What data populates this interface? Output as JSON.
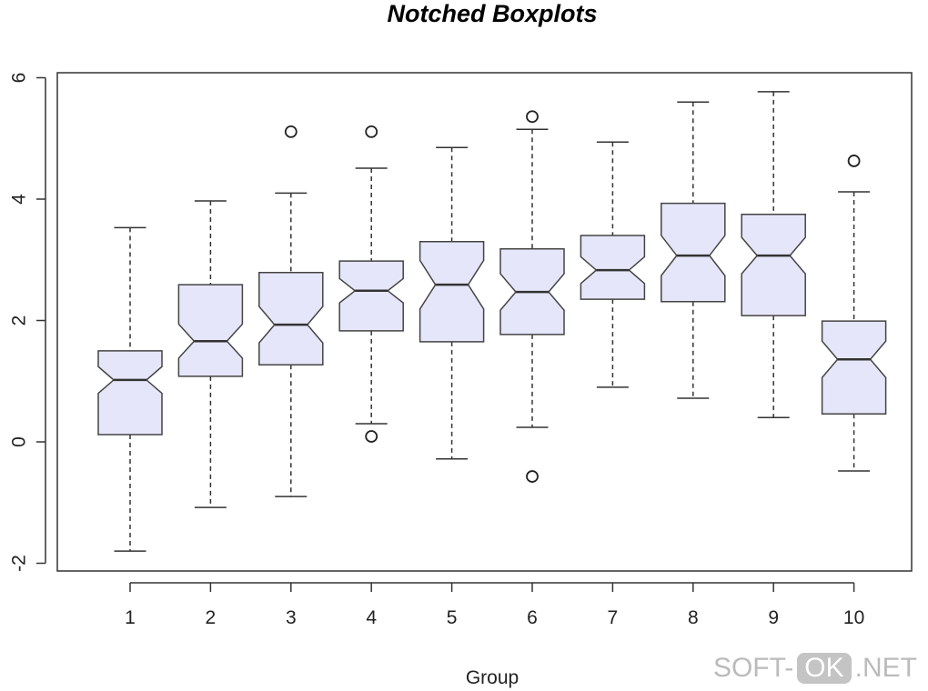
{
  "chart_data": {
    "type": "boxplot",
    "title": "Notched Boxplots",
    "xlabel": "Group",
    "ylabel": "",
    "ylim": [
      -2,
      6
    ],
    "yticks": [
      "-2",
      "0",
      "2",
      "4",
      "6"
    ],
    "categories": [
      "1",
      "2",
      "3",
      "4",
      "5",
      "6",
      "7",
      "8",
      "9",
      "10"
    ],
    "box_color": "#e6e6fa",
    "boxes": [
      {
        "low": -1.8,
        "q1": 0.12,
        "median": 1.02,
        "q3": 1.5,
        "high": 3.53,
        "notch": 0.22,
        "outliers": []
      },
      {
        "low": -1.08,
        "q1": 1.08,
        "median": 1.66,
        "q3": 2.59,
        "high": 3.97,
        "notch": 0.28,
        "outliers": []
      },
      {
        "low": -0.9,
        "q1": 1.27,
        "median": 1.93,
        "q3": 2.79,
        "high": 4.1,
        "notch": 0.3,
        "outliers": [
          5.11
        ]
      },
      {
        "low": 0.3,
        "q1": 1.83,
        "median": 2.49,
        "q3": 2.98,
        "high": 4.51,
        "notch": 0.2,
        "outliers": [
          5.11,
          0.09
        ]
      },
      {
        "low": -0.28,
        "q1": 1.65,
        "median": 2.59,
        "q3": 3.3,
        "high": 4.85,
        "notch": 0.4,
        "outliers": []
      },
      {
        "low": 0.24,
        "q1": 1.77,
        "median": 2.47,
        "q3": 3.18,
        "high": 5.15,
        "notch": 0.3,
        "outliers": [
          5.36,
          -0.57
        ]
      },
      {
        "low": 0.9,
        "q1": 2.35,
        "median": 2.83,
        "q3": 3.4,
        "high": 4.94,
        "notch": 0.22,
        "outliers": []
      },
      {
        "low": 0.72,
        "q1": 2.31,
        "median": 3.07,
        "q3": 3.93,
        "high": 5.6,
        "notch": 0.33,
        "outliers": []
      },
      {
        "low": 0.4,
        "q1": 2.08,
        "median": 3.07,
        "q3": 3.75,
        "high": 5.77,
        "notch": 0.3,
        "outliers": []
      },
      {
        "low": -0.48,
        "q1": 0.46,
        "median": 1.36,
        "q3": 1.99,
        "high": 4.12,
        "notch": 0.3,
        "outliers": [
          4.63
        ]
      }
    ]
  },
  "watermark": {
    "left": "SOFT-",
    "mid": "OK",
    "right": ".NET"
  }
}
